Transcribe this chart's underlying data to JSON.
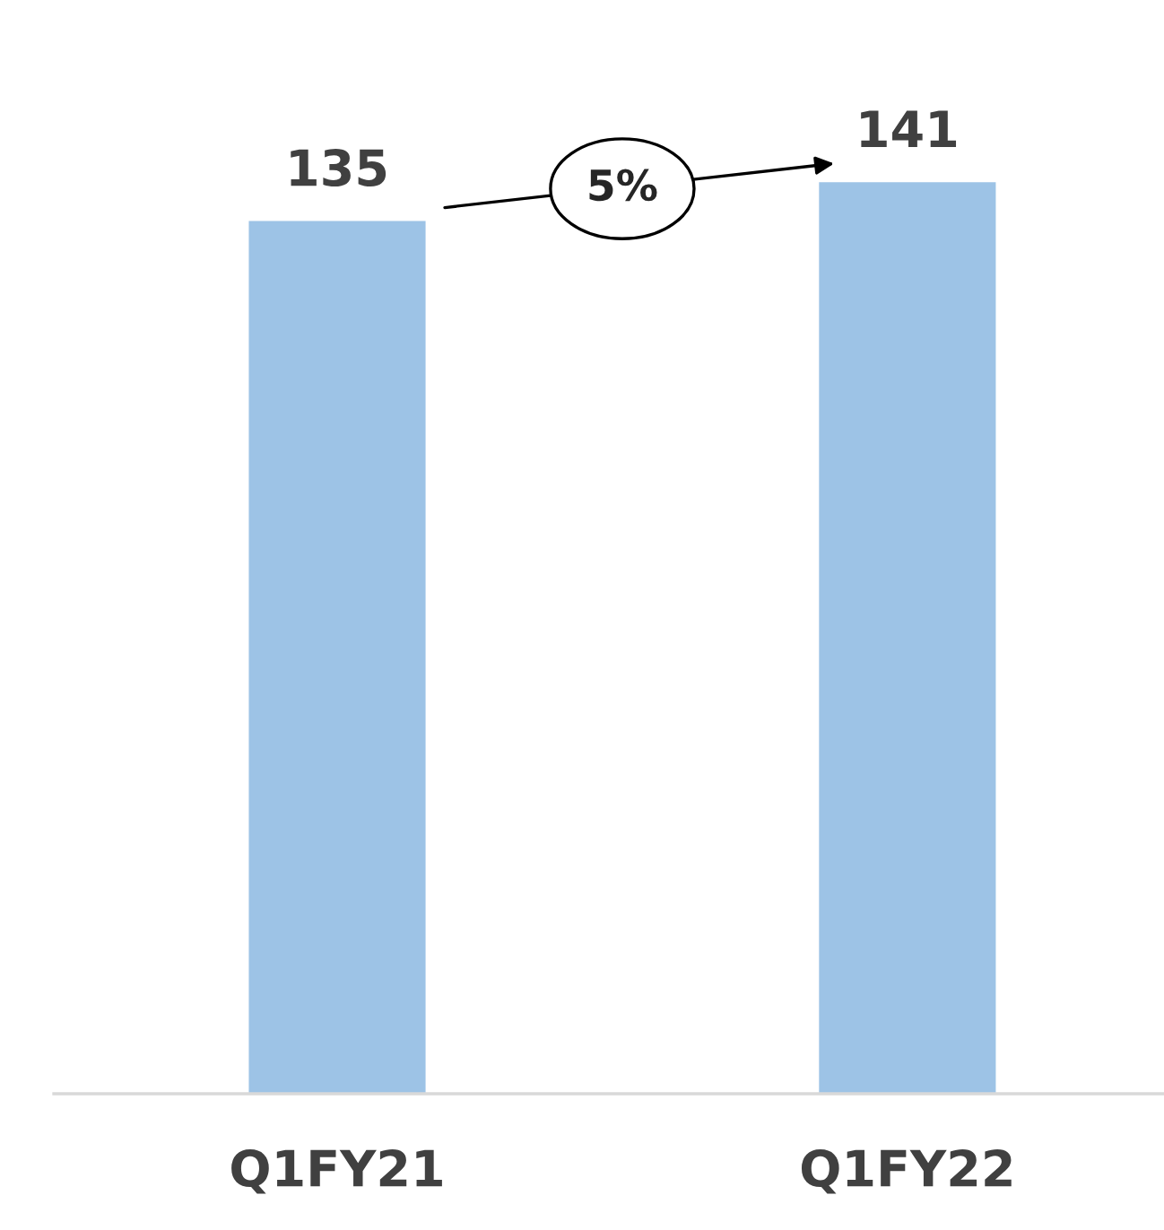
{
  "chart_data": {
    "type": "bar",
    "categories": [
      "Q1FY21",
      "Q1FY22"
    ],
    "values": [
      135,
      141
    ],
    "color": "#9dc3e6",
    "data_labels": true,
    "grid": false,
    "legend": false,
    "tick_labels": "x",
    "annotations": [
      "5%"
    ]
  }
}
